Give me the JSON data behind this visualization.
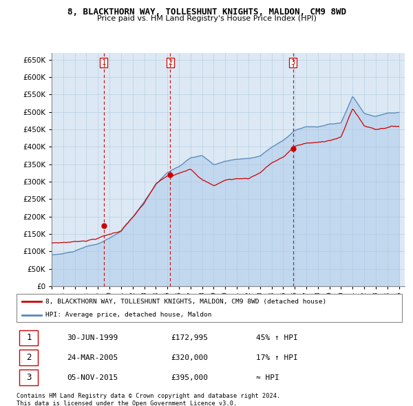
{
  "title": "8, BLACKTHORN WAY, TOLLESHUNT KNIGHTS, MALDON, CM9 8WD",
  "subtitle": "Price paid vs. HM Land Registry's House Price Index (HPI)",
  "ylim": [
    0,
    670000
  ],
  "yticks": [
    0,
    50000,
    100000,
    150000,
    200000,
    250000,
    300000,
    350000,
    400000,
    450000,
    500000,
    550000,
    600000,
    650000
  ],
  "background_color": "#ffffff",
  "plot_bg_color": "#dce9f5",
  "grid_color": "#b8cfe0",
  "sale_color": "#cc0000",
  "hpi_color": "#5588bb",
  "hpi_fill_color": "#aac8e8",
  "sale_label": "8, BLACKTHORN WAY, TOLLESHUNT KNIGHTS, MALDON, CM9 8WD (detached house)",
  "hpi_label": "HPI: Average price, detached house, Maldon",
  "transactions": [
    {
      "num": 1,
      "date": "30-JUN-1999",
      "price": 172995,
      "hpi_rel": "45% ↑ HPI",
      "year": 1999.5
    },
    {
      "num": 2,
      "date": "24-MAR-2005",
      "price": 320000,
      "hpi_rel": "17% ↑ HPI",
      "year": 2005.25
    },
    {
      "num": 3,
      "date": "05-NOV-2015",
      "price": 395000,
      "hpi_rel": "≈ HPI",
      "year": 2015.84
    }
  ],
  "footer1": "Contains HM Land Registry data © Crown copyright and database right 2024.",
  "footer2": "This data is licensed under the Open Government Licence v3.0.",
  "xlim": [
    1995.0,
    2025.5
  ],
  "xtick_years": [
    1995,
    1996,
    1997,
    1998,
    1999,
    2000,
    2001,
    2002,
    2003,
    2004,
    2005,
    2006,
    2007,
    2008,
    2009,
    2010,
    2011,
    2012,
    2013,
    2014,
    2015,
    2016,
    2017,
    2018,
    2019,
    2020,
    2021,
    2022,
    2023,
    2024,
    2025
  ]
}
